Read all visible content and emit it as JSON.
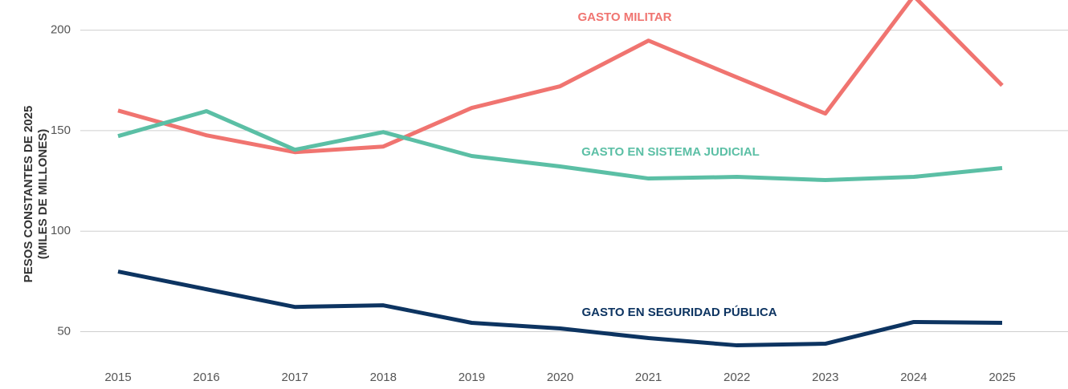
{
  "chart_data": {
    "type": "line",
    "y_label": [
      "PESOS CONSTANTES DE 2025",
      "(MILES DE MILLONES)"
    ],
    "categories": [
      "2015",
      "2016",
      "2017",
      "2018",
      "2019",
      "2020",
      "2021",
      "2022",
      "2023",
      "2024",
      "2025"
    ],
    "series": [
      {
        "name": "GASTO MILITAR",
        "color": "#f07470",
        "values": [
          160,
          147.7,
          139.3,
          142.1,
          161.3,
          172.1,
          194.8,
          176.5,
          158.5,
          217,
          172.5
        ]
      },
      {
        "name": "GASTO EN SISTEMA JUDICIAL",
        "color": "#5bbfa5",
        "values": [
          147.3,
          159.7,
          140.5,
          149.3,
          137.4,
          132.2,
          126.2,
          127,
          125.4,
          127,
          131.4
        ]
      },
      {
        "name": "GASTO EN SEGURIDAD PÚBLICA",
        "color": "#0d3461",
        "values": [
          79.9,
          71.1,
          62.3,
          63.1,
          54.4,
          51.6,
          46.8,
          43.2,
          44,
          54.8,
          54.4
        ]
      }
    ],
    "ylim": [
      36,
      215
    ],
    "yticks": [
      50,
      100,
      150,
      200
    ],
    "grid": true
  }
}
